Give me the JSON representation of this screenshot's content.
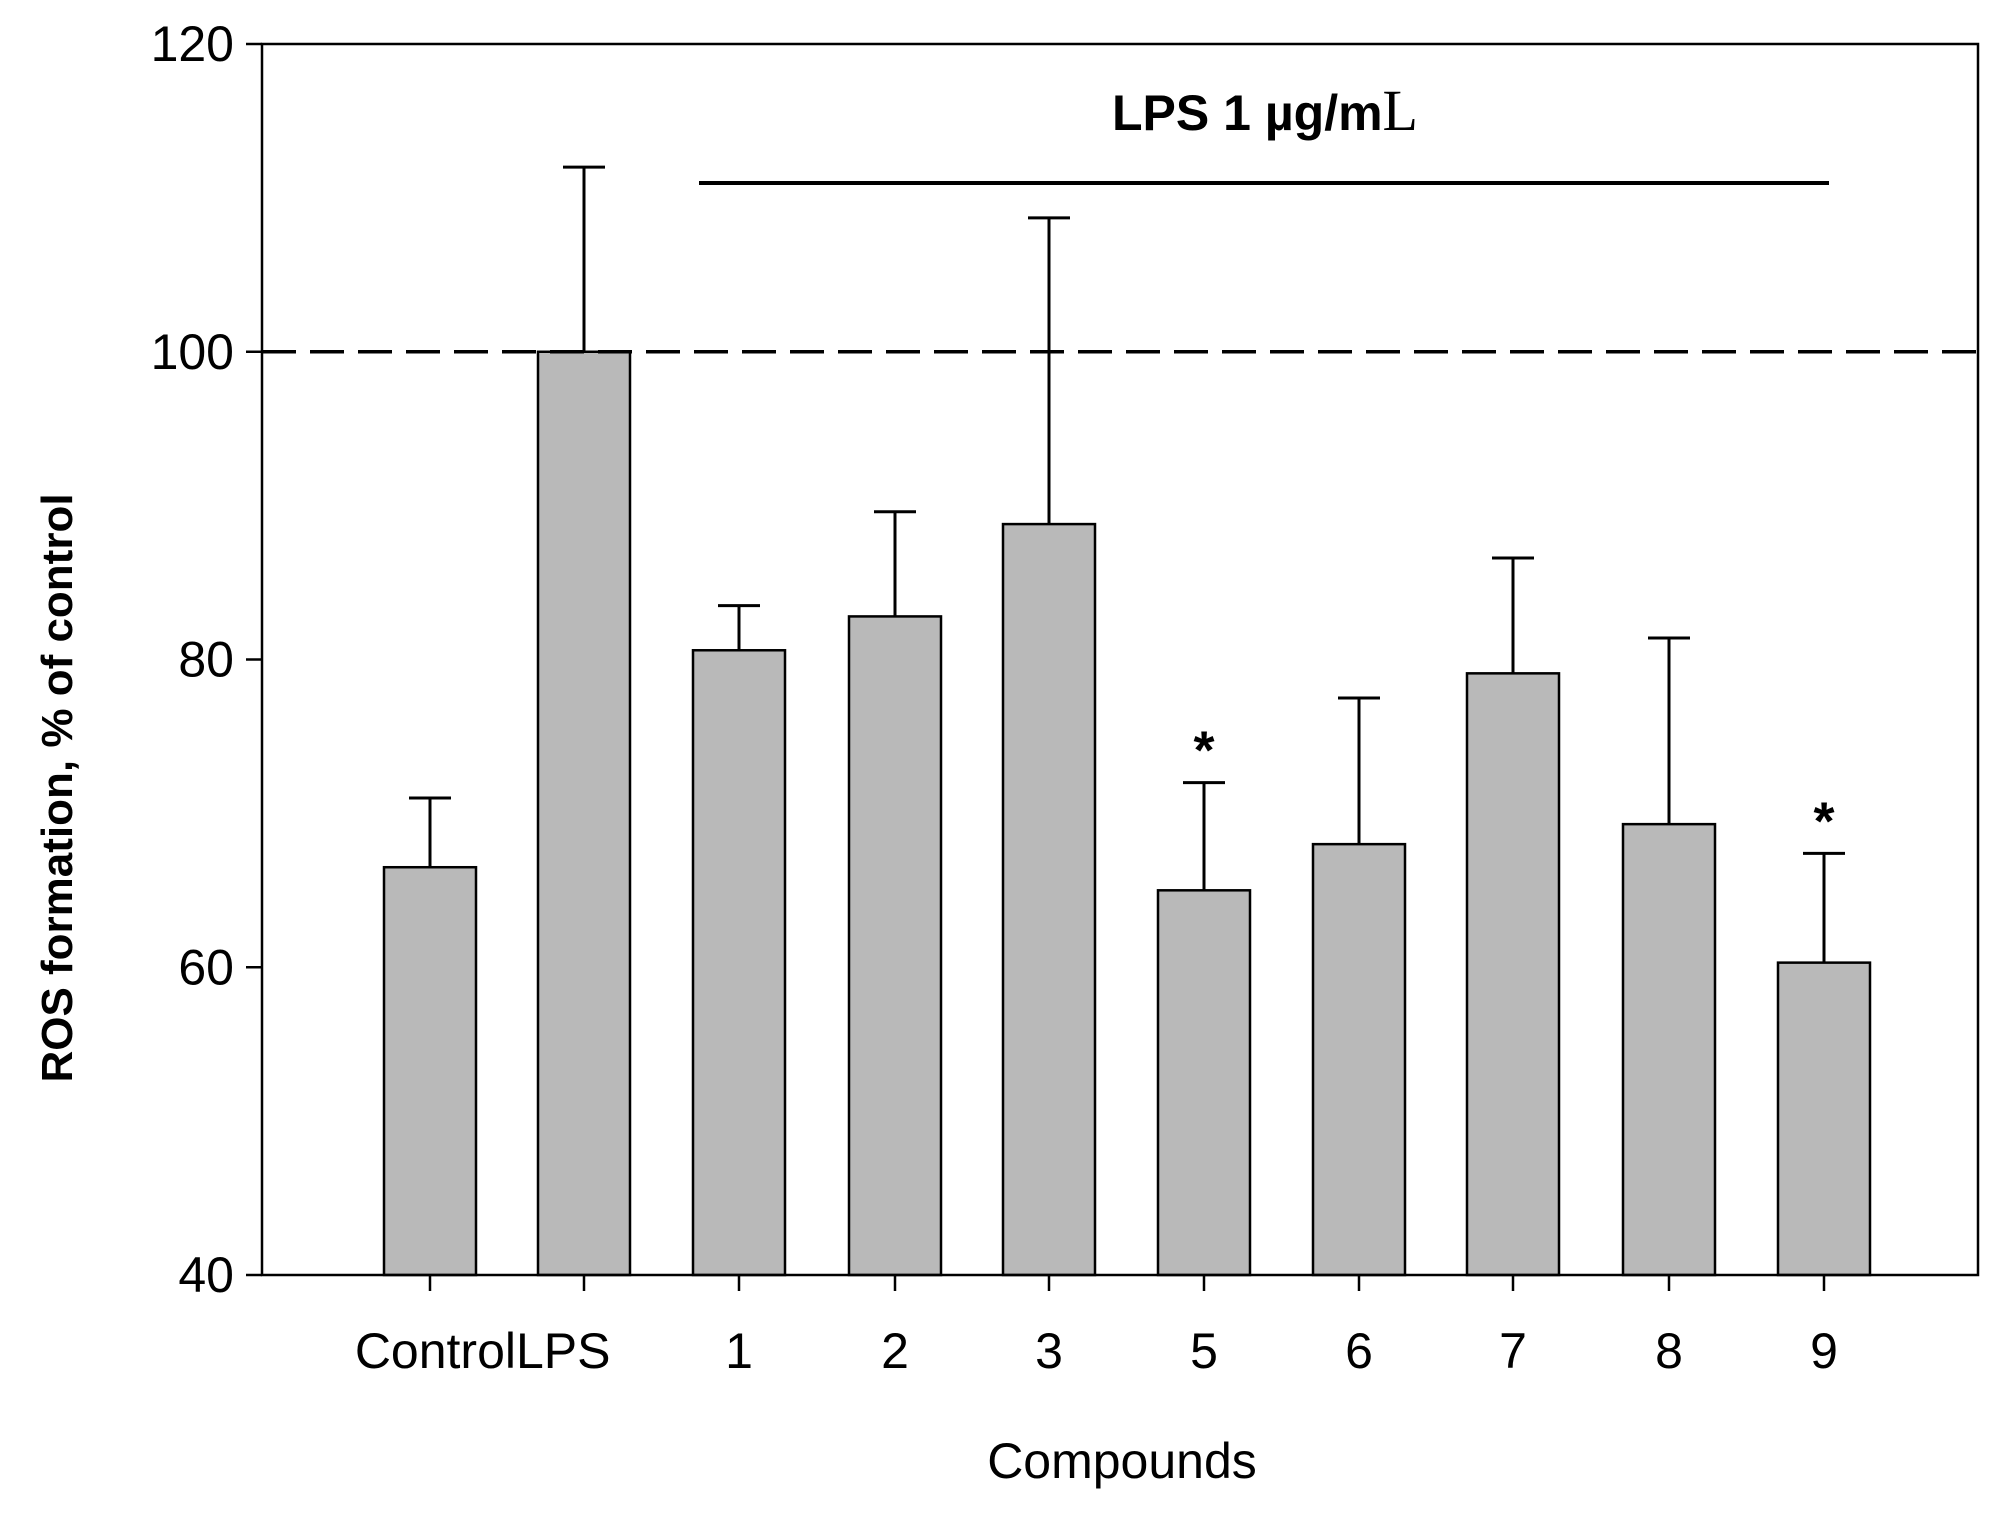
{
  "chart_data": {
    "type": "bar",
    "title": "",
    "xlabel": "Compounds",
    "ylabel": "ROS formation, % of control",
    "ylim": [
      40,
      120
    ],
    "yticks": [
      "40",
      "60",
      "80",
      "100",
      "120"
    ],
    "categories": [
      "Control",
      "LPS",
      "1",
      "2",
      "3",
      "5",
      "6",
      "7",
      "8",
      "9"
    ],
    "values": [
      66.5,
      100,
      80.6,
      82.8,
      88.8,
      65,
      68,
      79.1,
      69.3,
      60.3
    ],
    "error_upper": [
      71,
      112,
      83.5,
      89.6,
      108.7,
      72,
      77.5,
      86.6,
      81.4,
      67.4
    ],
    "significance": [
      "",
      "",
      "",
      "",
      "",
      "*",
      "",
      "",
      "",
      "*"
    ],
    "reference_line": {
      "value": 100,
      "style": "dashed"
    },
    "bracket": {
      "label_prefix": "LPS 1 ",
      "label_unit_mu": "µg/m",
      "label_unit_L": "L",
      "from_category": "1",
      "to_category": "9"
    },
    "grid": false,
    "colors": {
      "bar_fill": "#b9b9b9",
      "bar_stroke": "#000000",
      "axis": "#000000"
    }
  }
}
